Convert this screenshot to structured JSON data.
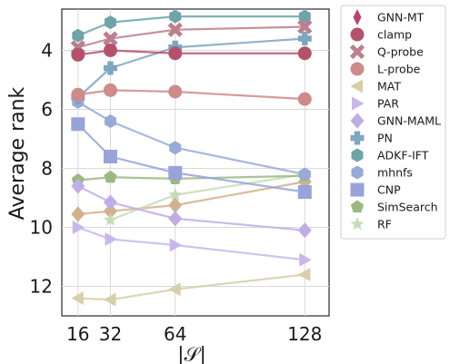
{
  "chart_data": {
    "type": "line",
    "xlabel": "|𝒮|",
    "ylabel": "Average rank",
    "x_ticks": [
      16,
      32,
      64,
      128
    ],
    "y_ticks": [
      4,
      6,
      8,
      10,
      12
    ],
    "xlim": [
      8,
      140
    ],
    "ylim": [
      13.0,
      2.6
    ],
    "y_inverted": true,
    "grid": true,
    "legend_position": "outside-right",
    "series": [
      {
        "name": "GNN-MT",
        "marker": "thin_diamond",
        "color": "#b5466e",
        "values": [
          null,
          null,
          null,
          null
        ]
      },
      {
        "name": "clamp",
        "marker": "circle",
        "color": "#b4526c",
        "values": [
          4.15,
          4.0,
          4.1,
          4.1
        ]
      },
      {
        "name": "Q-probe",
        "marker": "x",
        "color": "#bb7f8d",
        "values": [
          3.9,
          3.6,
          3.3,
          3.2
        ]
      },
      {
        "name": "L-probe",
        "marker": "circle",
        "color": "#cf8a8a",
        "values": [
          5.5,
          5.35,
          5.4,
          5.65
        ]
      },
      {
        "name": "MAT",
        "marker": "triangle_left",
        "color": "#d6cfa8",
        "values": [
          12.4,
          12.45,
          12.1,
          11.6
        ]
      },
      {
        "name": "PAR",
        "marker": "triangle_right",
        "color": "#c8b8ea",
        "values": [
          10.0,
          10.4,
          10.6,
          11.1
        ]
      },
      {
        "name": "GNN-MAML",
        "marker": "diamond",
        "color": "#bfaee6",
        "values": [
          8.6,
          9.15,
          9.7,
          10.1
        ]
      },
      {
        "name": "PN",
        "marker": "plus",
        "color": "#7fa6bf",
        "values": [
          5.6,
          4.6,
          3.9,
          3.6
        ]
      },
      {
        "name": "ADKF-IFT",
        "marker": "hexagon",
        "color": "#6ea3a8",
        "values": [
          3.5,
          3.05,
          2.85,
          2.85
        ]
      },
      {
        "name": "mhnfs",
        "marker": "hexagon",
        "color": "#98aad8",
        "values": [
          5.75,
          6.4,
          7.3,
          8.2
        ]
      },
      {
        "name": "CNP",
        "marker": "square",
        "color": "#98a3da",
        "values": [
          6.5,
          7.6,
          8.15,
          8.8
        ]
      },
      {
        "name": "SimSearch",
        "marker": "pentagon",
        "color": "#9bb883",
        "values": [
          8.4,
          8.3,
          8.35,
          8.25
        ]
      },
      {
        "name": "RF",
        "marker": "star",
        "color": "#c5dcb7",
        "values": [
          null,
          9.75,
          8.9,
          8.2
        ]
      },
      {
        "name": "",
        "marker": "diamond",
        "color": "#d2b18d",
        "values": [
          9.55,
          9.45,
          9.25,
          8.45
        ]
      }
    ]
  }
}
